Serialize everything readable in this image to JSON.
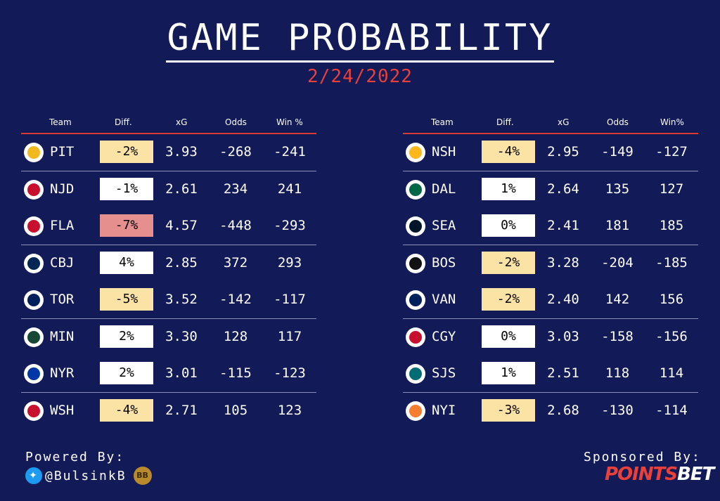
{
  "title": "GAME PROBABILITY",
  "date": "2/24/2022",
  "headers": {
    "left": {
      "team": "Team",
      "diff": "Diff.",
      "xg": "xG",
      "odds": "Odds",
      "win": "Win %"
    },
    "right": {
      "team": "Team",
      "diff": "Diff.",
      "xg": "xG",
      "odds": "Odds",
      "win": "Win%"
    }
  },
  "colors": {
    "background": "#121a57",
    "accent": "#e8403a",
    "diff_yellow": "#fbe3a5",
    "diff_red": "#e58f8f",
    "diff_white": "#ffffff"
  },
  "left": [
    {
      "team": "PIT",
      "diff": "-2%",
      "xg": "3.93",
      "odds": "-268",
      "win": "-241",
      "tint": "yellow",
      "logo_color": "#f2b91e",
      "icon": "penguins-logo"
    },
    {
      "team": "NJD",
      "diff": "-1%",
      "xg": "2.61",
      "odds": "234",
      "win": "241",
      "tint": "white",
      "logo_color": "#c8102e",
      "icon": "devils-logo"
    },
    {
      "team": "FLA",
      "diff": "-7%",
      "xg": "4.57",
      "odds": "-448",
      "win": "-293",
      "tint": "red",
      "logo_color": "#c8102e",
      "icon": "panthers-logo"
    },
    {
      "team": "CBJ",
      "diff": "4%",
      "xg": "2.85",
      "odds": "372",
      "win": "293",
      "tint": "white",
      "logo_color": "#002654",
      "icon": "blue-jackets-logo"
    },
    {
      "team": "TOR",
      "diff": "-5%",
      "xg": "3.52",
      "odds": "-142",
      "win": "-117",
      "tint": "yellow",
      "logo_color": "#00205b",
      "icon": "maple-leafs-logo"
    },
    {
      "team": "MIN",
      "diff": "2%",
      "xg": "3.30",
      "odds": "128",
      "win": "117",
      "tint": "white",
      "logo_color": "#154734",
      "icon": "wild-logo"
    },
    {
      "team": "NYR",
      "diff": "2%",
      "xg": "3.01",
      "odds": "-115",
      "win": "-123",
      "tint": "white",
      "logo_color": "#0038a8",
      "icon": "rangers-logo"
    },
    {
      "team": "WSH",
      "diff": "-4%",
      "xg": "2.71",
      "odds": "105",
      "win": "123",
      "tint": "yellow",
      "logo_color": "#c8102e",
      "icon": "capitals-logo"
    }
  ],
  "right": [
    {
      "team": "NSH",
      "diff": "-4%",
      "xg": "2.95",
      "odds": "-149",
      "win": "-127",
      "tint": "yellow",
      "logo_color": "#ffb81c",
      "icon": "predators-logo"
    },
    {
      "team": "DAL",
      "diff": "1%",
      "xg": "2.64",
      "odds": "135",
      "win": "127",
      "tint": "white",
      "logo_color": "#006847",
      "icon": "stars-logo"
    },
    {
      "team": "SEA",
      "diff": "0%",
      "xg": "2.41",
      "odds": "181",
      "win": "185",
      "tint": "white",
      "logo_color": "#001628",
      "icon": "kraken-logo"
    },
    {
      "team": "BOS",
      "diff": "-2%",
      "xg": "3.28",
      "odds": "-204",
      "win": "-185",
      "tint": "yellow",
      "logo_color": "#111111",
      "icon": "bruins-logo"
    },
    {
      "team": "VAN",
      "diff": "-2%",
      "xg": "2.40",
      "odds": "142",
      "win": "156",
      "tint": "yellow",
      "logo_color": "#00205b",
      "icon": "canucks-logo"
    },
    {
      "team": "CGY",
      "diff": "0%",
      "xg": "3.03",
      "odds": "-158",
      "win": "-156",
      "tint": "white",
      "logo_color": "#c8102e",
      "icon": "flames-logo"
    },
    {
      "team": "SJS",
      "diff": "1%",
      "xg": "2.51",
      "odds": "118",
      "win": "114",
      "tint": "white",
      "logo_color": "#006d75",
      "icon": "sharks-logo"
    },
    {
      "team": "NYI",
      "diff": "-3%",
      "xg": "2.68",
      "odds": "-130",
      "win": "-114",
      "tint": "yellow",
      "logo_color": "#f47d30",
      "icon": "islanders-logo"
    }
  ],
  "footer": {
    "powered_label": "Powered By:",
    "handle": "@BulsinkB",
    "twitter_icon": "twitter-bird-icon",
    "badge_text": "BB",
    "sponsored_label": "Sponsored By:",
    "sponsor_part1": "POINTS",
    "sponsor_part2": "BET",
    "sponsor_color1": "#e8403a",
    "sponsor_color2": "#ffffff"
  }
}
